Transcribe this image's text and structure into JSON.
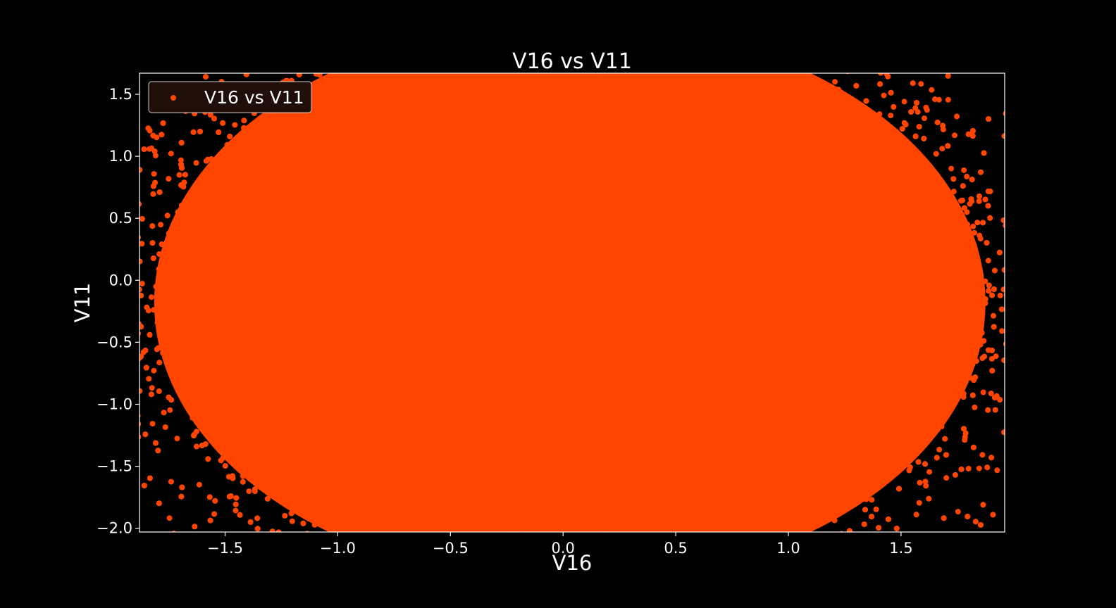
{
  "colors": {
    "background": "#000000",
    "point": "#ff4500",
    "axes": "#ffffff",
    "legend_bg": "#1f0f08"
  },
  "chart_data": {
    "type": "scatter",
    "title": "V16 vs V11",
    "xlabel": "V16",
    "ylabel": "V11",
    "xlim": [
      -1.88,
      1.96
    ],
    "ylim": [
      -2.03,
      1.67
    ],
    "xticks": [
      -1.5,
      -1.0,
      -0.5,
      0.0,
      0.5,
      1.0,
      1.5
    ],
    "xtick_labels": [
      "−1.5",
      "−1.0",
      "−0.5",
      "0.0",
      "0.5",
      "1.0",
      "1.5"
    ],
    "yticks": [
      -2.0,
      -1.5,
      -1.0,
      -0.5,
      0.0,
      0.5,
      1.0,
      1.5
    ],
    "ytick_labels": [
      "−2.0",
      "−1.5",
      "−1.0",
      "−0.5",
      "0.0",
      "0.5",
      "1.0",
      "1.5"
    ],
    "grid": false,
    "legend": {
      "position": "upper-left",
      "entries": [
        "V16 vs V11"
      ]
    },
    "series": [
      {
        "name": "V16 vs V11",
        "color": "#ff4500",
        "distribution": "dense cloud filling the whole plotting area; points thin out toward the four corners",
        "x": [
          -1.2,
          -0.8,
          -0.4,
          0.0,
          0.4,
          0.8,
          1.2,
          -1.6,
          1.7,
          -1.7,
          1.8,
          0.0,
          -0.5,
          0.5
        ],
        "y": [
          0.0,
          0.5,
          -0.5,
          0.0,
          0.5,
          -0.5,
          0.0,
          1.4,
          1.5,
          -1.9,
          -1.8,
          -2.0,
          1.6,
          -1.0
        ]
      }
    ]
  }
}
